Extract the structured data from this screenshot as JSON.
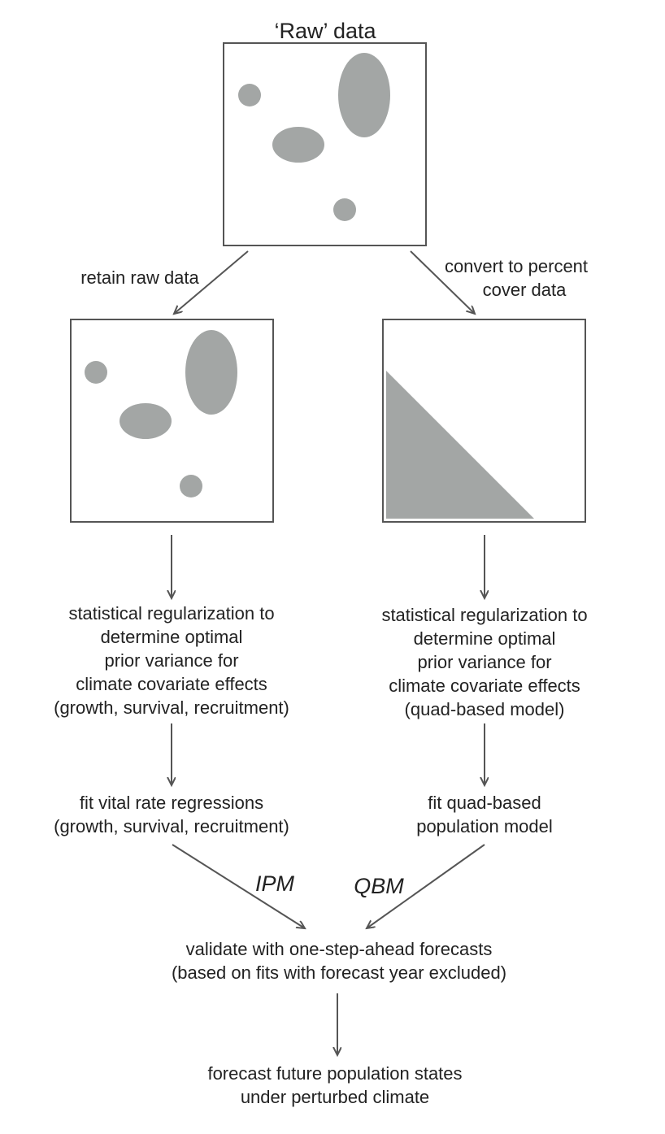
{
  "title": "‘Raw’ data",
  "left_branch_label": "retain raw data",
  "right_branch_label": [
    "convert to percent",
    "cover data"
  ],
  "left_regularization": [
    "statistical regularization to",
    "determine optimal",
    "prior variance for",
    "climate covariate effects",
    "(growth, survival, recruitment)"
  ],
  "right_regularization": [
    "statistical regularization to",
    "determine optimal",
    "prior variance for",
    "climate covariate effects",
    "(quad-based model)"
  ],
  "left_fit": [
    "fit vital rate regressions",
    "(growth, survival, recruitment)"
  ],
  "right_fit": [
    "fit quad-based",
    "population model"
  ],
  "left_model_label": "IPM",
  "right_model_label": "QBM",
  "validate": [
    "validate with one-step-ahead forecasts",
    "(based on fits with forecast year excluded)"
  ],
  "forecast": [
    "forecast future population states",
    "under perturbed climate"
  ],
  "colors": {
    "stroke": "#555555",
    "fill_grey": "#a3a6a5",
    "text": "#222222"
  }
}
